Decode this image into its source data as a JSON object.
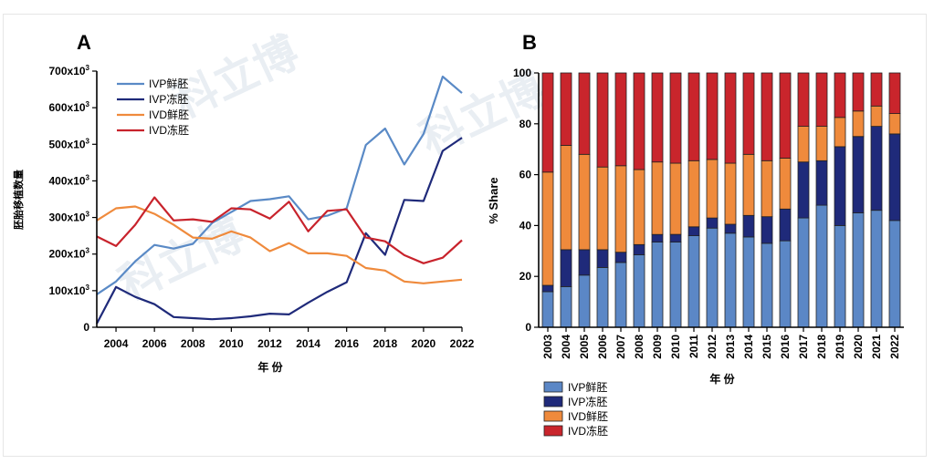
{
  "chart_data": [
    {
      "panel": "A",
      "type": "line",
      "xlabel": "年 份",
      "ylabel": "胚胎移植数量",
      "x": [
        2003,
        2004,
        2005,
        2006,
        2007,
        2008,
        2009,
        2010,
        2011,
        2012,
        2013,
        2014,
        2015,
        2016,
        2017,
        2018,
        2019,
        2020,
        2021,
        2022
      ],
      "xticks": [
        2004,
        2006,
        2008,
        2010,
        2012,
        2014,
        2016,
        2018,
        2020,
        2022
      ],
      "yticks": [
        {
          "v": 0,
          "t": "0"
        },
        {
          "v": 100,
          "t": "100x10³"
        },
        {
          "v": 200,
          "t": "200x10³"
        },
        {
          "v": 300,
          "t": "300x10³"
        },
        {
          "v": 400,
          "t": "400x10³"
        },
        {
          "v": 500,
          "t": "500x10³"
        },
        {
          "v": 600,
          "t": "600x10³"
        },
        {
          "v": 700,
          "t": "700x10³"
        }
      ],
      "ylim": [
        0,
        700
      ],
      "series": [
        {
          "name": "IVP鲜胚",
          "color": "#5a8ac6",
          "values": [
            90,
            125,
            180,
            225,
            215,
            228,
            285,
            315,
            345,
            350,
            358,
            295,
            305,
            325,
            498,
            543,
            445,
            528,
            685,
            640
          ]
        },
        {
          "name": "IVP冻胚",
          "color": "#1f2a7a",
          "values": [
            10,
            110,
            83,
            63,
            28,
            25,
            22,
            25,
            30,
            37,
            35,
            67,
            97,
            123,
            257,
            198,
            348,
            345,
            482,
            518
          ]
        },
        {
          "name": "IVD鲜胚",
          "color": "#ef8a3c",
          "values": [
            292,
            325,
            330,
            310,
            280,
            245,
            242,
            262,
            245,
            208,
            230,
            202,
            202,
            195,
            162,
            155,
            125,
            120,
            125,
            130
          ]
        },
        {
          "name": "IVD冻胚",
          "color": "#c8232c",
          "values": [
            248,
            222,
            280,
            355,
            292,
            295,
            288,
            325,
            322,
            297,
            343,
            262,
            318,
            322,
            245,
            235,
            197,
            175,
            190,
            238
          ]
        }
      ]
    },
    {
      "panel": "B",
      "type": "bar",
      "stacked": true,
      "xlabel": "年 份",
      "ylabel": "% Share",
      "ylim": [
        0,
        100
      ],
      "yticks": [
        0,
        20,
        40,
        60,
        80,
        100
      ],
      "categories": [
        "2003",
        "2004",
        "2005",
        "2006",
        "2007",
        "2008",
        "2009",
        "2010",
        "2011",
        "2012",
        "2013",
        "2014",
        "2015",
        "2016",
        "2017",
        "2018",
        "2019",
        "2020",
        "2021",
        "2022"
      ],
      "series": [
        {
          "name": "IVP鲜胚",
          "color": "#5b87c6",
          "values": [
            14,
            16,
            20.5,
            23.5,
            25.5,
            28.5,
            33.5,
            33.5,
            36,
            39,
            37,
            35.5,
            33,
            34,
            43,
            48,
            40,
            45,
            46,
            42
          ]
        },
        {
          "name": "IVP冻胚",
          "color": "#1f2a7a",
          "values": [
            2.5,
            14.5,
            10,
            7,
            4,
            4,
            3,
            3,
            3.5,
            4,
            3.5,
            8.5,
            10.5,
            12.5,
            22,
            17.5,
            31,
            30,
            33,
            34
          ]
        },
        {
          "name": "IVD鲜胚",
          "color": "#ef8a3c",
          "values": [
            44.5,
            41,
            37.5,
            32.5,
            34,
            29.5,
            28.5,
            28,
            26,
            23,
            24,
            24,
            22,
            20,
            14,
            13.5,
            11.5,
            10,
            8,
            8
          ]
        },
        {
          "name": "IVD冻胚",
          "color": "#c9252c",
          "values": [
            39,
            28.5,
            32,
            37,
            36.5,
            38,
            35,
            35.5,
            34.5,
            34,
            35.5,
            32,
            34.5,
            33.5,
            21,
            21,
            17.5,
            15,
            13,
            16
          ]
        }
      ]
    }
  ],
  "watermark": "科立博"
}
